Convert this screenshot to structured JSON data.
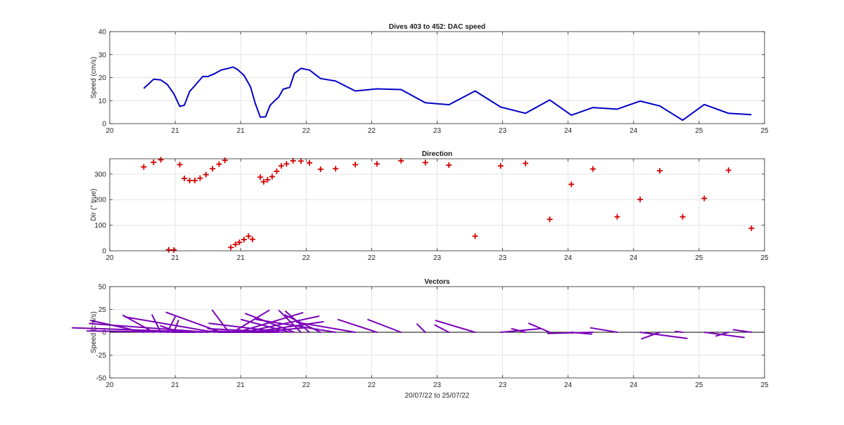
{
  "chart_data": [
    {
      "type": "line",
      "title": "Dives 403 to 452: DAC speed",
      "xlabel": "",
      "ylabel": "Speed (cm/s)",
      "xlim": [
        0,
        10
      ],
      "ylim": [
        0,
        40
      ],
      "xtick_values": [
        0,
        1,
        2,
        3,
        4,
        5,
        6,
        7,
        8,
        9,
        10
      ],
      "xtick_labels": [
        "20",
        "21",
        "21",
        "22",
        "22",
        "23",
        "23",
        "24",
        "24",
        "25",
        "25"
      ],
      "ytick_values": [
        0,
        10,
        20,
        30,
        40
      ],
      "ytick_labels": [
        "0",
        "10",
        "20",
        "30",
        "40"
      ],
      "grid": true,
      "series": [
        {
          "color": "#0000c8",
          "x": [
            0.52,
            0.67,
            0.78,
            0.88,
            0.98,
            1.07,
            1.14,
            1.22,
            1.3,
            1.42,
            1.5,
            1.6,
            1.7,
            1.82,
            1.88,
            1.95,
            2.05,
            2.15,
            2.22,
            2.3,
            2.38,
            2.45,
            2.52,
            2.58,
            2.65,
            2.75,
            2.82,
            2.92,
            3.05,
            3.22,
            3.45,
            3.75,
            4.08,
            4.45,
            4.82,
            5.18,
            5.58,
            5.97,
            6.35,
            6.72,
            7.05,
            7.38,
            7.75,
            8.1,
            8.4,
            8.75,
            9.08,
            9.45,
            9.8
          ],
          "y": [
            15.3,
            19.3,
            19.0,
            17.0,
            13.0,
            7.5,
            8.0,
            14.0,
            16.5,
            20.5,
            20.5,
            21.7,
            23.3,
            24.1,
            24.6,
            23.6,
            21.0,
            16.0,
            9.0,
            2.8,
            3.0,
            8.0,
            10.0,
            11.5,
            15.0,
            15.8,
            21.8,
            24.0,
            23.3,
            19.6,
            18.5,
            14.2,
            15.1,
            14.8,
            9.1,
            8.2,
            14.2,
            7.2,
            4.5,
            10.3,
            3.7,
            7.0,
            6.3,
            9.8,
            7.7,
            1.5,
            8.3,
            4.5,
            3.9
          ]
        }
      ]
    },
    {
      "type": "scatter",
      "title": "Direction",
      "xlabel": "",
      "ylabel": "Dir (° true)",
      "xlim": [
        0,
        10
      ],
      "ylim": [
        0,
        360
      ],
      "xtick_values": [
        0,
        1,
        2,
        3,
        4,
        5,
        6,
        7,
        8,
        9,
        10
      ],
      "xtick_labels": [
        "20",
        "21",
        "21",
        "22",
        "22",
        "23",
        "23",
        "24",
        "24",
        "25",
        "25"
      ],
      "ytick_values": [
        0,
        100,
        200,
        300
      ],
      "ytick_labels": [
        "0",
        "100",
        "200",
        "300"
      ],
      "grid": true,
      "series": [
        {
          "color": "#d40000",
          "marker": "+",
          "x": [
            0.52,
            0.67,
            0.78,
            0.9,
            0.98,
            1.07,
            1.14,
            1.22,
            1.3,
            1.38,
            1.47,
            1.57,
            1.67,
            1.76,
            1.85,
            1.92,
            1.98,
            2.05,
            2.12,
            2.18,
            2.3,
            2.35,
            2.41,
            2.48,
            2.55,
            2.62,
            2.7,
            2.8,
            2.92,
            3.05,
            3.22,
            3.45,
            3.75,
            4.08,
            4.45,
            4.82,
            5.18,
            5.58,
            5.97,
            6.35,
            6.72,
            7.05,
            7.38,
            7.75,
            8.1,
            8.4,
            8.75,
            9.08,
            9.45,
            9.8
          ],
          "y": [
            328,
            346,
            356,
            4,
            3,
            337,
            283,
            275,
            275,
            284,
            298,
            321,
            339,
            354,
            13,
            25,
            33,
            44,
            57,
            45,
            288,
            270,
            278,
            290,
            311,
            332,
            340,
            352,
            351,
            344,
            319,
            321,
            337,
            340,
            352,
            345,
            335,
            57,
            332,
            342,
            123,
            260,
            320,
            133,
            201,
            313,
            133,
            205,
            315,
            88
          ]
        }
      ]
    },
    {
      "type": "line",
      "title": "Vectors",
      "xlabel": "20/07/22 to 25/07/22",
      "ylabel": "Speed (cm/s)",
      "xlim": [
        0,
        10
      ],
      "ylim": [
        -50,
        50
      ],
      "xtick_values": [
        0,
        1,
        2,
        3,
        4,
        5,
        6,
        7,
        8,
        9,
        10
      ],
      "xtick_labels": [
        "20",
        "21",
        "21",
        "22",
        "22",
        "23",
        "23",
        "24",
        "24",
        "25",
        "25"
      ],
      "ytick_values": [
        -50,
        -25,
        0,
        25,
        50
      ],
      "ytick_labels": [
        "-50",
        "-25",
        "0",
        "25",
        "50"
      ],
      "grid": true,
      "vector_color": "#7a00b8",
      "zero_line": true
    }
  ]
}
